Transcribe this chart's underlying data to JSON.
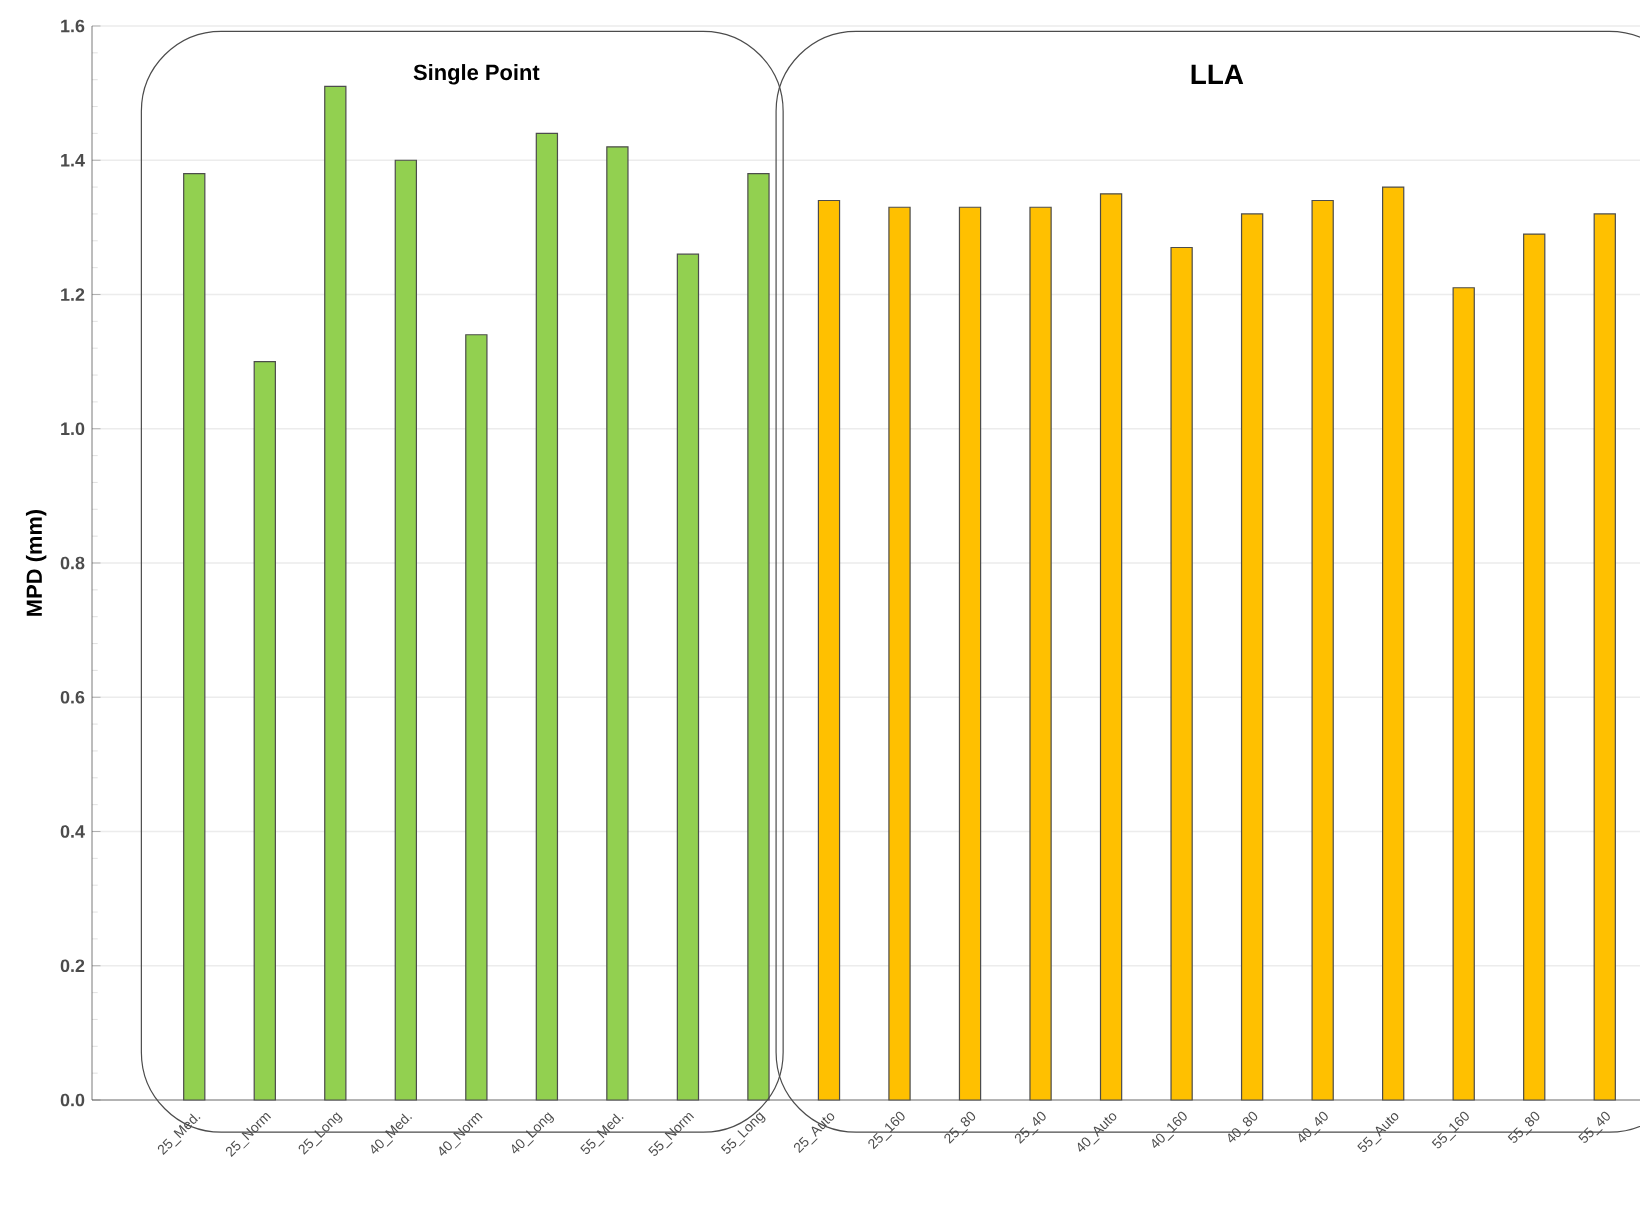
{
  "chart_data": {
    "type": "bar",
    "categories": [
      "25_Med.",
      "25_Norm",
      "25_Long",
      "40_Med.",
      "40_Norm",
      "40_Long",
      "55_Med.",
      "55_Norm",
      "55_Long",
      "25_Auto",
      "25_160",
      "25_80",
      "25_40",
      "40_Auto",
      "40_160",
      "40_80",
      "40_40",
      "55_Auto",
      "55_160",
      "55_80",
      "55_40"
    ],
    "values": [
      1.38,
      1.1,
      1.51,
      1.4,
      1.14,
      1.44,
      1.42,
      1.26,
      1.38,
      1.34,
      1.33,
      1.33,
      1.33,
      1.35,
      1.27,
      1.32,
      1.34,
      1.36,
      1.21,
      1.29,
      1.32
    ],
    "colors": [
      "#92d050",
      "#92d050",
      "#92d050",
      "#92d050",
      "#92d050",
      "#92d050",
      "#92d050",
      "#92d050",
      "#92d050",
      "#ffc000",
      "#ffc000",
      "#ffc000",
      "#ffc000",
      "#ffc000",
      "#ffc000",
      "#ffc000",
      "#ffc000",
      "#ffc000",
      "#ffc000",
      "#ffc000",
      "#ffc000"
    ],
    "ylabel": "MPD (mm)",
    "ylim": [
      0,
      1.6
    ],
    "yticks": [
      {
        "value": 0,
        "label": "0.0"
      },
      {
        "value": 0.2,
        "label": "0.2"
      },
      {
        "value": 0.4,
        "label": "0.4"
      },
      {
        "value": 0.6,
        "label": "0.6"
      },
      {
        "value": 0.8,
        "label": "0.8"
      },
      {
        "value": 1.0,
        "label": "1.0"
      },
      {
        "value": 1.2,
        "label": "1.2"
      },
      {
        "value": 1.4,
        "label": "1.4"
      },
      {
        "value": 1.6,
        "label": "1.6"
      }
    ],
    "grid": "y",
    "annotations": [
      "Single Point",
      "LLA"
    ]
  }
}
